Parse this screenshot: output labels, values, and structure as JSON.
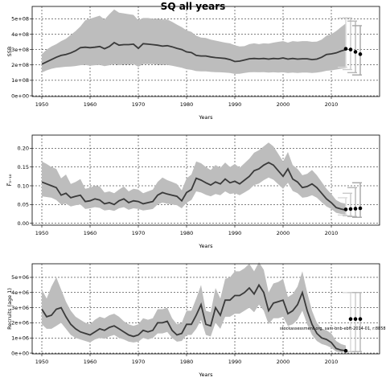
{
  "title": "SQ all years",
  "note": "stockassessment.org, sam-bnb-ebft-2014-01, r:8858",
  "chart_data": [
    {
      "type": "line",
      "ylabel": "SSB",
      "xlabel": "Years",
      "xlim": [
        1948,
        2020
      ],
      "ylim": [
        -5000000,
        580000000
      ],
      "xticks": [
        1950,
        1960,
        1970,
        1980,
        1990,
        2000,
        2010
      ],
      "yticks": [
        0,
        100000000,
        200000000,
        300000000,
        400000000,
        500000000
      ],
      "ytick_labels": [
        "0e+00",
        "1e+08",
        "2e+08",
        "3e+08",
        "4e+08",
        "5e+08"
      ],
      "grid": true,
      "x": [
        1950,
        1951,
        1952,
        1953,
        1954,
        1955,
        1956,
        1957,
        1958,
        1959,
        1960,
        1961,
        1962,
        1963,
        1964,
        1965,
        1966,
        1967,
        1968,
        1969,
        1970,
        1971,
        1972,
        1973,
        1974,
        1975,
        1976,
        1977,
        1978,
        1979,
        1980,
        1981,
        1982,
        1983,
        1984,
        1985,
        1986,
        1987,
        1988,
        1989,
        1990,
        1991,
        1992,
        1993,
        1994,
        1995,
        1996,
        1997,
        1998,
        1999,
        2000,
        2001,
        2002,
        2003,
        2004,
        2005,
        2006,
        2007,
        2008,
        2009,
        2010,
        2011,
        2012,
        2013
      ],
      "y": [
        205,
        220,
        235,
        250,
        262,
        268,
        278,
        292,
        312,
        315,
        312,
        315,
        320,
        305,
        320,
        345,
        328,
        332,
        332,
        335,
        308,
        338,
        335,
        332,
        328,
        322,
        325,
        318,
        308,
        300,
        285,
        280,
        262,
        258,
        258,
        252,
        248,
        245,
        242,
        235,
        222,
        225,
        232,
        240,
        242,
        240,
        242,
        238,
        242,
        240,
        245,
        238,
        242,
        238,
        240,
        240,
        235,
        238,
        250,
        268,
        272,
        278,
        290,
        300
      ],
      "upper": [
        270,
        300,
        320,
        335,
        355,
        370,
        395,
        420,
        450,
        490,
        500,
        510,
        520,
        495,
        530,
        560,
        540,
        535,
        530,
        525,
        490,
        505,
        505,
        500,
        500,
        495,
        495,
        480,
        462,
        445,
        425,
        415,
        390,
        378,
        375,
        365,
        358,
        352,
        345,
        340,
        328,
        320,
        322,
        335,
        340,
        335,
        340,
        338,
        345,
        350,
        355,
        345,
        355,
        352,
        355,
        355,
        350,
        352,
        365,
        390,
        400,
        420,
        445,
        470
      ],
      "lower": [
        150,
        165,
        175,
        182,
        185,
        188,
        190,
        193,
        198,
        200,
        195,
        198,
        200,
        192,
        198,
        205,
        198,
        202,
        202,
        205,
        188,
        205,
        205,
        205,
        202,
        200,
        200,
        195,
        188,
        182,
        172,
        168,
        160,
        158,
        158,
        155,
        153,
        152,
        150,
        148,
        142,
        143,
        148,
        152,
        153,
        152,
        153,
        150,
        152,
        150,
        152,
        148,
        150,
        148,
        150,
        150,
        148,
        150,
        155,
        162,
        165,
        170,
        175,
        180
      ],
      "y_scale": 1000000,
      "forecast": {
        "points": [
          [
            2013,
            305
          ],
          [
            2014,
            300
          ],
          [
            2015,
            285
          ],
          [
            2016,
            270
          ]
        ],
        "bars": [
          [
            2013,
            185,
            505
          ],
          [
            2014,
            170,
            505
          ],
          [
            2015,
            150,
            485
          ],
          [
            2016,
            135,
            455
          ]
        ],
        "y_scale": 1000000
      }
    },
    {
      "type": "line",
      "ylabel": "F̅₃₋₁₀",
      "xlabel": "Years",
      "xlim": [
        1948,
        2020
      ],
      "ylim": [
        -0.005,
        0.235
      ],
      "xticks": [
        1950,
        1960,
        1970,
        1980,
        1990,
        2000,
        2010
      ],
      "yticks": [
        0.0,
        0.05,
        0.1,
        0.15,
        0.2
      ],
      "ytick_labels": [
        "0.00",
        "0.05",
        "0.10",
        "0.15",
        "0.20"
      ],
      "grid": true,
      "x": [
        1950,
        1951,
        1952,
        1953,
        1954,
        1955,
        1956,
        1957,
        1958,
        1959,
        1960,
        1961,
        1962,
        1963,
        1964,
        1965,
        1966,
        1967,
        1968,
        1969,
        1970,
        1971,
        1972,
        1973,
        1974,
        1975,
        1976,
        1977,
        1978,
        1979,
        1980,
        1981,
        1982,
        1983,
        1984,
        1985,
        1986,
        1987,
        1988,
        1989,
        1990,
        1991,
        1992,
        1993,
        1994,
        1995,
        1996,
        1997,
        1998,
        1999,
        2000,
        2001,
        2002,
        2003,
        2004,
        2005,
        2006,
        2007,
        2008,
        2009,
        2010,
        2011,
        2012,
        2013
      ],
      "y": [
        0.11,
        0.105,
        0.1,
        0.095,
        0.075,
        0.08,
        0.068,
        0.072,
        0.075,
        0.058,
        0.06,
        0.065,
        0.062,
        0.052,
        0.055,
        0.05,
        0.06,
        0.065,
        0.055,
        0.06,
        0.058,
        0.052,
        0.055,
        0.058,
        0.075,
        0.082,
        0.078,
        0.075,
        0.072,
        0.06,
        0.082,
        0.09,
        0.12,
        0.115,
        0.108,
        0.102,
        0.11,
        0.105,
        0.118,
        0.108,
        0.112,
        0.105,
        0.115,
        0.125,
        0.14,
        0.145,
        0.155,
        0.162,
        0.155,
        0.14,
        0.125,
        0.145,
        0.118,
        0.11,
        0.095,
        0.098,
        0.105,
        0.095,
        0.08,
        0.065,
        0.055,
        0.042,
        0.038,
        0.035
      ],
      "upper": [
        0.165,
        0.158,
        0.15,
        0.145,
        0.12,
        0.13,
        0.105,
        0.11,
        0.118,
        0.092,
        0.095,
        0.1,
        0.098,
        0.082,
        0.085,
        0.08,
        0.09,
        0.098,
        0.085,
        0.092,
        0.09,
        0.08,
        0.085,
        0.09,
        0.11,
        0.122,
        0.115,
        0.11,
        0.105,
        0.088,
        0.12,
        0.13,
        0.165,
        0.16,
        0.15,
        0.142,
        0.155,
        0.148,
        0.162,
        0.15,
        0.158,
        0.148,
        0.16,
        0.172,
        0.188,
        0.195,
        0.205,
        0.215,
        0.205,
        0.185,
        0.165,
        0.19,
        0.155,
        0.145,
        0.128,
        0.132,
        0.142,
        0.128,
        0.11,
        0.092,
        0.078,
        0.062,
        0.055,
        0.052
      ],
      "lower": [
        0.072,
        0.07,
        0.068,
        0.062,
        0.05,
        0.052,
        0.045,
        0.048,
        0.05,
        0.038,
        0.04,
        0.043,
        0.041,
        0.034,
        0.036,
        0.033,
        0.04,
        0.043,
        0.036,
        0.04,
        0.038,
        0.034,
        0.036,
        0.038,
        0.05,
        0.055,
        0.052,
        0.05,
        0.048,
        0.04,
        0.055,
        0.062,
        0.085,
        0.082,
        0.076,
        0.072,
        0.078,
        0.075,
        0.085,
        0.078,
        0.08,
        0.075,
        0.082,
        0.09,
        0.102,
        0.106,
        0.115,
        0.122,
        0.116,
        0.104,
        0.092,
        0.108,
        0.086,
        0.08,
        0.068,
        0.07,
        0.075,
        0.068,
        0.056,
        0.045,
        0.038,
        0.028,
        0.025,
        0.023
      ],
      "forecast": {
        "points": [
          [
            2013,
            0.037
          ],
          [
            2014,
            0.038
          ],
          [
            2015,
            0.039
          ],
          [
            2016,
            0.04
          ]
        ],
        "bars": [
          [
            2013,
            0.022,
            0.068
          ],
          [
            2014,
            0.02,
            0.08
          ],
          [
            2015,
            0.018,
            0.095
          ],
          [
            2016,
            0.016,
            0.108
          ]
        ]
      }
    },
    {
      "type": "line",
      "ylabel": "Recruits (age 1)",
      "xlabel": "Years",
      "xlim": [
        1948,
        2020
      ],
      "ylim": [
        -50000,
        5900000
      ],
      "xticks": [
        1950,
        1960,
        1970,
        1980,
        1990,
        2000,
        2010
      ],
      "yticks": [
        0,
        1000000,
        2000000,
        3000000,
        4000000,
        5000000
      ],
      "ytick_labels": [
        "0e+00",
        "1e+06",
        "2e+06",
        "3e+06",
        "4e+06",
        "5e+06"
      ],
      "grid": true,
      "x": [
        1950,
        1951,
        1952,
        1953,
        1954,
        1955,
        1956,
        1957,
        1958,
        1959,
        1960,
        1961,
        1962,
        1963,
        1964,
        1965,
        1966,
        1967,
        1968,
        1969,
        1970,
        1971,
        1972,
        1973,
        1974,
        1975,
        1976,
        1977,
        1978,
        1979,
        1980,
        1981,
        1982,
        1983,
        1984,
        1985,
        1986,
        1987,
        1988,
        1989,
        1990,
        1991,
        1992,
        1993,
        1994,
        1995,
        1996,
        1997,
        1998,
        1999,
        2000,
        2001,
        2002,
        2003,
        2004,
        2005,
        2006,
        2007,
        2008,
        2009,
        2010,
        2011,
        2012,
        2013
      ],
      "y": [
        2.9,
        2.4,
        2.5,
        2.9,
        3.0,
        2.4,
        1.9,
        1.6,
        1.4,
        1.3,
        1.2,
        1.4,
        1.6,
        1.5,
        1.7,
        1.8,
        1.6,
        1.4,
        1.2,
        1.1,
        1.2,
        1.5,
        1.4,
        1.5,
        2.0,
        2.0,
        2.1,
        1.5,
        1.2,
        1.3,
        1.9,
        1.9,
        2.5,
        3.2,
        1.9,
        1.8,
        3.0,
        2.5,
        3.5,
        3.5,
        3.8,
        3.8,
        4.0,
        4.3,
        3.9,
        4.5,
        4.0,
        2.8,
        3.3,
        3.4,
        3.5,
        2.6,
        2.8,
        3.2,
        4.0,
        2.8,
        1.9,
        1.3,
        1.0,
        0.9,
        0.7,
        0.3,
        0.2,
        0.15
      ],
      "upper": [
        4.2,
        3.6,
        4.4,
        5.0,
        4.2,
        3.4,
        2.8,
        2.4,
        2.2,
        2.0,
        1.9,
        2.2,
        2.4,
        2.3,
        2.5,
        2.6,
        2.4,
        2.1,
        1.9,
        1.8,
        1.9,
        2.3,
        2.2,
        2.3,
        2.9,
        2.9,
        3.0,
        2.3,
        1.9,
        2.0,
        2.8,
        2.8,
        3.6,
        4.5,
        2.8,
        2.7,
        4.3,
        3.6,
        4.9,
        5.0,
        5.4,
        5.4,
        5.6,
        5.9,
        5.4,
        6.0,
        5.5,
        4.0,
        4.6,
        4.7,
        4.9,
        3.7,
        3.9,
        4.4,
        5.4,
        4.0,
        2.8,
        2.0,
        1.6,
        1.5,
        1.3,
        0.8,
        0.6,
        0.5
      ],
      "lower": [
        1.9,
        1.6,
        1.6,
        1.8,
        2.0,
        1.6,
        1.2,
        1.0,
        0.9,
        0.8,
        0.7,
        0.9,
        1.0,
        0.95,
        1.1,
        1.2,
        1.0,
        0.9,
        0.75,
        0.7,
        0.75,
        1.0,
        0.9,
        1.0,
        1.3,
        1.3,
        1.4,
        1.0,
        0.75,
        0.8,
        1.2,
        1.2,
        1.6,
        2.2,
        1.2,
        1.1,
        2.0,
        1.6,
        2.4,
        2.4,
        2.6,
        2.6,
        2.8,
        3.0,
        2.7,
        3.2,
        2.8,
        1.9,
        2.3,
        2.3,
        2.4,
        1.8,
        1.9,
        2.2,
        2.8,
        1.9,
        1.2,
        0.8,
        0.6,
        0.5,
        0.35,
        0.1,
        0.05,
        0.03
      ],
      "y_scale": 1000000,
      "forecast": {
        "points": [
          [
            2013,
            0.15
          ],
          [
            2014,
            2.25
          ],
          [
            2015,
            2.25
          ],
          [
            2016,
            2.25
          ]
        ],
        "bars": [
          [
            2014,
            0.1,
            4.0
          ],
          [
            2015,
            0.1,
            4.0
          ],
          [
            2016,
            0.1,
            4.0
          ]
        ],
        "y_scale": 1000000
      }
    }
  ]
}
